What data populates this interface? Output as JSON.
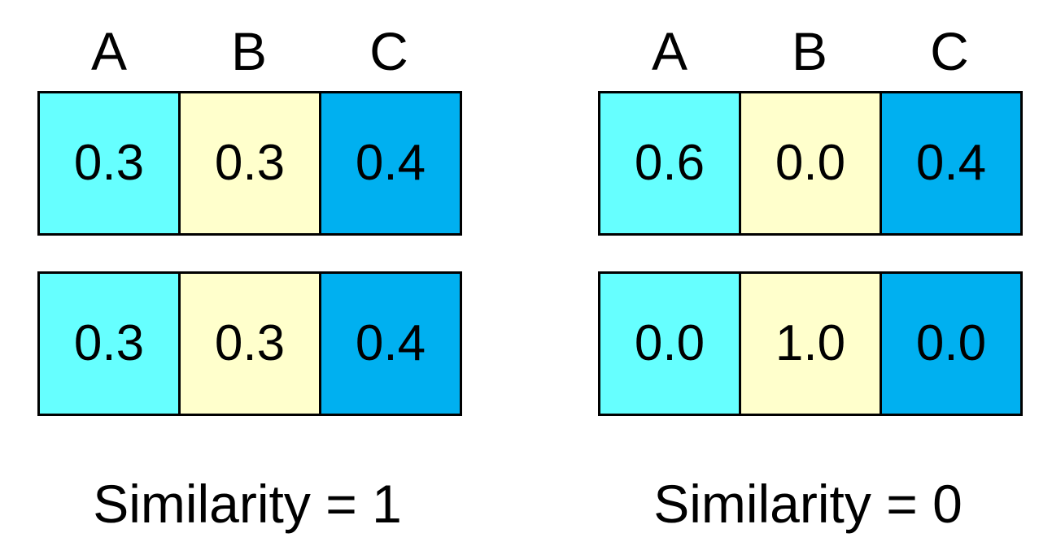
{
  "colors": {
    "A": "#66FFFF",
    "B": "#FFFFCC",
    "C": "#00B0F0"
  },
  "panels": [
    {
      "headers": [
        "A",
        "B",
        "C"
      ],
      "rows": [
        [
          "0.3",
          "0.3",
          "0.4"
        ],
        [
          "0.3",
          "0.3",
          "0.4"
        ]
      ],
      "caption": "Similarity = 1"
    },
    {
      "headers": [
        "A",
        "B",
        "C"
      ],
      "rows": [
        [
          "0.6",
          "0.0",
          "0.4"
        ],
        [
          "0.0",
          "1.0",
          "0.0"
        ]
      ],
      "caption": "Similarity = 0"
    }
  ]
}
